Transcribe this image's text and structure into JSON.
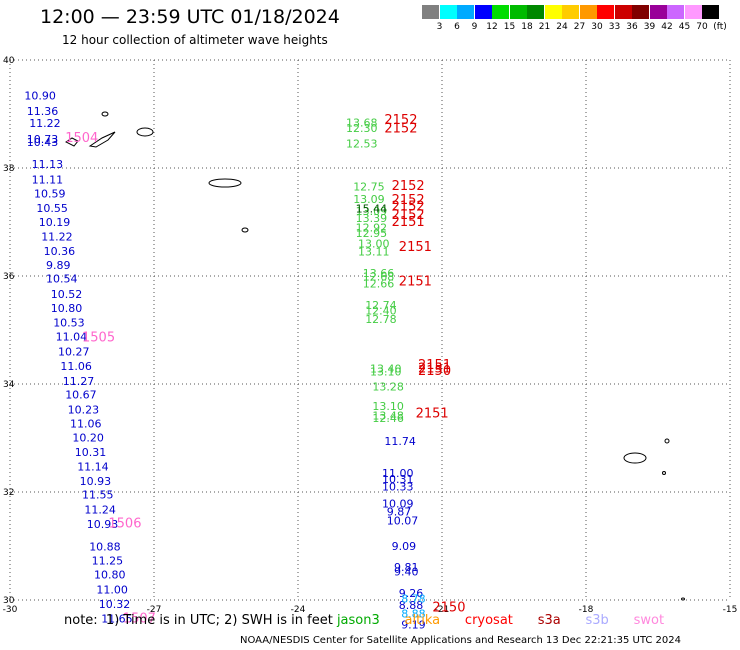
{
  "header": {
    "title": "12:00 — 23:59 UTC 01/18/2024",
    "subtitle": "12 hour collection of altimeter wave heights"
  },
  "color_legend": {
    "labels": [
      "3",
      "6",
      "9",
      "12",
      "15",
      "18",
      "21",
      "24",
      "27",
      "30",
      "33",
      "36",
      "39",
      "42",
      "45",
      "70"
    ],
    "unit": "(ft)",
    "colors": [
      "#808080",
      "#00ffff",
      "#00aaff",
      "#0000ff",
      "#00dd00",
      "#00bb00",
      "#008800",
      "#ffff00",
      "#ffcc00",
      "#ff9900",
      "#ff0000",
      "#cc0000",
      "#800000",
      "#990099",
      "#cc66ff",
      "#ff99ff",
      "#000000"
    ]
  },
  "chart_data": {
    "type": "scatter",
    "xlim": [
      -30,
      -15
    ],
    "ylim": [
      30,
      40
    ],
    "x_ticks": [
      "-30",
      "-27",
      "-24",
      "-21",
      "-18",
      "-15"
    ],
    "y_ticks": [
      "30",
      "32",
      "34",
      "36",
      "38",
      "40"
    ],
    "grid": true,
    "series": [
      {
        "color": "#0000cc",
        "points": [
          {
            "x": -29.7,
            "y": 39.34,
            "label": "10.90"
          },
          {
            "x": -29.65,
            "y": 39.06,
            "label": "11.36"
          },
          {
            "x": -29.6,
            "y": 38.83,
            "label": "11.22"
          },
          {
            "x": -29.65,
            "y": 38.54,
            "label": "10.73"
          },
          {
            "x": -29.65,
            "y": 38.48,
            "label": "10.43"
          },
          {
            "x": -29.55,
            "y": 38.07,
            "label": "11.13"
          },
          {
            "x": -29.55,
            "y": 37.79,
            "label": "11.11"
          },
          {
            "x": -29.5,
            "y": 37.53,
            "label": "10.59"
          },
          {
            "x": -29.45,
            "y": 37.26,
            "label": "10.55"
          },
          {
            "x": -29.4,
            "y": 37.0,
            "label": "10.19"
          },
          {
            "x": -29.35,
            "y": 36.73,
            "label": "11.22"
          },
          {
            "x": -29.3,
            "y": 36.46,
            "label": "10.36"
          },
          {
            "x": -29.25,
            "y": 36.2,
            "label": "9.89"
          },
          {
            "x": -29.25,
            "y": 35.95,
            "label": "10.54"
          },
          {
            "x": -29.15,
            "y": 35.67,
            "label": "10.52"
          },
          {
            "x": -29.15,
            "y": 35.41,
            "label": "10.80"
          },
          {
            "x": -29.1,
            "y": 35.14,
            "label": "10.53"
          },
          {
            "x": -29.05,
            "y": 34.88,
            "label": "11.04"
          },
          {
            "x": -29.0,
            "y": 34.6,
            "label": "10.27"
          },
          {
            "x": -28.95,
            "y": 34.33,
            "label": "11.06"
          },
          {
            "x": -28.9,
            "y": 34.06,
            "label": "11.27"
          },
          {
            "x": -28.85,
            "y": 33.81,
            "label": "10.67"
          },
          {
            "x": -28.8,
            "y": 33.53,
            "label": "10.23"
          },
          {
            "x": -28.75,
            "y": 33.27,
            "label": "11.06"
          },
          {
            "x": -28.7,
            "y": 33.01,
            "label": "10.20"
          },
          {
            "x": -28.65,
            "y": 32.74,
            "label": "10.31"
          },
          {
            "x": -28.6,
            "y": 32.47,
            "label": "11.14"
          },
          {
            "x": -28.55,
            "y": 32.2,
            "label": "10.93"
          },
          {
            "x": -28.5,
            "y": 31.95,
            "label": "11.55"
          },
          {
            "x": -28.45,
            "y": 31.68,
            "label": "11.24"
          },
          {
            "x": -28.4,
            "y": 31.41,
            "label": "10.93"
          },
          {
            "x": -28.35,
            "y": 30.99,
            "label": "10.88"
          },
          {
            "x": -28.3,
            "y": 30.73,
            "label": "11.25"
          },
          {
            "x": -28.25,
            "y": 30.47,
            "label": "10.80"
          },
          {
            "x": -28.2,
            "y": 30.19,
            "label": "11.00"
          },
          {
            "x": -28.15,
            "y": 29.93,
            "label": "10.32"
          },
          {
            "x": -28.1,
            "y": 29.66,
            "label": "11.65"
          },
          {
            "x": -22.2,
            "y": 32.94,
            "label": "11.74"
          },
          {
            "x": -22.25,
            "y": 32.35,
            "label": "11.00"
          },
          {
            "x": -22.25,
            "y": 32.24,
            "label": "10.31"
          },
          {
            "x": -22.25,
            "y": 32.1,
            "label": "10.33"
          },
          {
            "x": -22.25,
            "y": 31.79,
            "label": "10.09"
          },
          {
            "x": -22.15,
            "y": 31.64,
            "label": "9.87"
          },
          {
            "x": -22.15,
            "y": 31.47,
            "label": "10.07"
          },
          {
            "x": -22.05,
            "y": 31.0,
            "label": "9.09"
          },
          {
            "x": -22.0,
            "y": 30.61,
            "label": "9.81"
          },
          {
            "x": -22.0,
            "y": 30.53,
            "label": "9.40"
          },
          {
            "x": -21.9,
            "y": 30.13,
            "label": "9.26"
          },
          {
            "x": -21.9,
            "y": 29.91,
            "label": "8.88"
          },
          {
            "x": -21.85,
            "y": 29.55,
            "label": "9.19"
          }
        ]
      },
      {
        "color": "#00aaff",
        "points": [
          {
            "x": -21.85,
            "y": 30.03,
            "label": "8.78"
          },
          {
            "x": -21.85,
            "y": 29.75,
            "label": "8.88"
          }
        ]
      },
      {
        "color": "#44cc44",
        "points": [
          {
            "x": -23.0,
            "y": 38.84,
            "label": "13.68"
          },
          {
            "x": -23.0,
            "y": 38.74,
            "label": "12.30"
          },
          {
            "x": -23.0,
            "y": 38.45,
            "label": "12.53"
          },
          {
            "x": -22.85,
            "y": 37.66,
            "label": "12.75"
          },
          {
            "x": -22.85,
            "y": 37.43,
            "label": "13.09"
          },
          {
            "x": -22.8,
            "y": 37.2,
            "label": "13.09"
          },
          {
            "x": -22.8,
            "y": 37.07,
            "label": "13.39"
          },
          {
            "x": -22.8,
            "y": 36.9,
            "label": "12.92"
          },
          {
            "x": -22.8,
            "y": 36.8,
            "label": "12.95"
          },
          {
            "x": -22.75,
            "y": 36.6,
            "label": "13.00"
          },
          {
            "x": -22.75,
            "y": 36.45,
            "label": "13.11"
          },
          {
            "x": -22.65,
            "y": 36.06,
            "label": "13.66"
          },
          {
            "x": -22.65,
            "y": 35.99,
            "label": "12.68"
          },
          {
            "x": -22.65,
            "y": 35.86,
            "label": "12.66"
          },
          {
            "x": -22.6,
            "y": 35.46,
            "label": "12.74"
          },
          {
            "x": -22.6,
            "y": 35.36,
            "label": "12.40"
          },
          {
            "x": -22.6,
            "y": 35.2,
            "label": "12.78"
          },
          {
            "x": -22.5,
            "y": 34.29,
            "label": "13.40"
          },
          {
            "x": -22.5,
            "y": 34.23,
            "label": "13.10"
          },
          {
            "x": -22.45,
            "y": 33.95,
            "label": "13.28"
          },
          {
            "x": -22.45,
            "y": 33.59,
            "label": "13.10"
          },
          {
            "x": -22.45,
            "y": 33.42,
            "label": "13.48"
          },
          {
            "x": -22.45,
            "y": 33.37,
            "label": "12.46"
          }
        ]
      },
      {
        "color": "#005500",
        "points": [
          {
            "x": -22.8,
            "y": 37.25,
            "label": "15.44"
          }
        ]
      },
      {
        "color": "#dd0000",
        "points": [
          {
            "x": -22.2,
            "y": 38.89,
            "label": "2152"
          },
          {
            "x": -22.2,
            "y": 38.73,
            "label": "2152"
          },
          {
            "x": -22.05,
            "y": 37.67,
            "label": "2152"
          },
          {
            "x": -22.05,
            "y": 37.41,
            "label": "2152"
          },
          {
            "x": -22.05,
            "y": 37.29,
            "label": "2152"
          },
          {
            "x": -22.05,
            "y": 37.13,
            "label": "2152"
          },
          {
            "x": -22.05,
            "y": 37.0,
            "label": "2151"
          },
          {
            "x": -21.9,
            "y": 36.54,
            "label": "2151"
          },
          {
            "x": -21.9,
            "y": 35.9,
            "label": "2151"
          },
          {
            "x": -21.5,
            "y": 34.35,
            "label": "2151"
          },
          {
            "x": -21.5,
            "y": 34.29,
            "label": "2151"
          },
          {
            "x": -21.5,
            "y": 34.24,
            "label": "2150"
          },
          {
            "x": -21.55,
            "y": 33.45,
            "label": "2151"
          },
          {
            "x": -21.2,
            "y": 29.86,
            "label": "2150"
          }
        ]
      },
      {
        "color": "#ff66cc",
        "points": [
          {
            "x": -28.85,
            "y": 38.56,
            "label": "1504"
          },
          {
            "x": -28.5,
            "y": 34.86,
            "label": "1505"
          },
          {
            "x": -27.95,
            "y": 31.42,
            "label": "1506"
          },
          {
            "x": -27.65,
            "y": 29.66,
            "label": "1507"
          }
        ]
      }
    ]
  },
  "note": {
    "prefix": "note:  1) Time is in UTC; 2) SWH is in feet",
    "satellites": [
      {
        "name": "jason3",
        "color": "#00aa00"
      },
      {
        "name": "altika",
        "color": "#ff9900"
      },
      {
        "name": "cryosat",
        "color": "#ff0000"
      },
      {
        "name": "s3a",
        "color": "#aa0000"
      },
      {
        "name": "s3b",
        "color": "#aaaaff"
      },
      {
        "name": "swot",
        "color": "#ff88dd"
      }
    ]
  },
  "credit": "NOAA/NESDIS Center for Satellite Applications and Research    13 Dec 22:21:35 UTC 2024"
}
